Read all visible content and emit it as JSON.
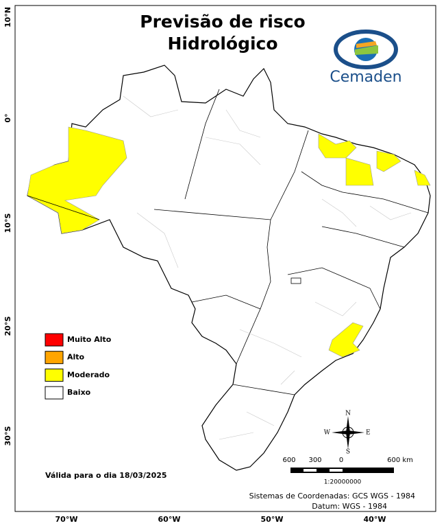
{
  "header": {
    "title_line1": "Previsão de risco",
    "title_line2": "Hidrológico",
    "logo": "Cemaden"
  },
  "legend": [
    {
      "label": "Muito Alto",
      "color": "#ff0000"
    },
    {
      "label": "Alto",
      "color": "#ffa500"
    },
    {
      "label": "Moderado",
      "color": "#ffff00"
    },
    {
      "label": "Baixo",
      "color": "#ffffff"
    }
  ],
  "axes": {
    "lat_labels": [
      "10°N",
      "0°",
      "10°S",
      "20°S",
      "30°S"
    ],
    "lon_labels": [
      "70°W",
      "60°W",
      "50°W",
      "40°W"
    ]
  },
  "validity": "Válida para o dia 18/03/2025",
  "scale": {
    "labels": [
      "600",
      "300",
      "0",
      "600 km"
    ],
    "ratio": "1:20000000"
  },
  "compass": {
    "n": "N",
    "s": "S",
    "w": "W",
    "e": "E"
  },
  "footer": {
    "coords": "Sistemas de Coordenadas: GCS WGS - 1984",
    "datum": "Datum: WGS - 1984"
  }
}
